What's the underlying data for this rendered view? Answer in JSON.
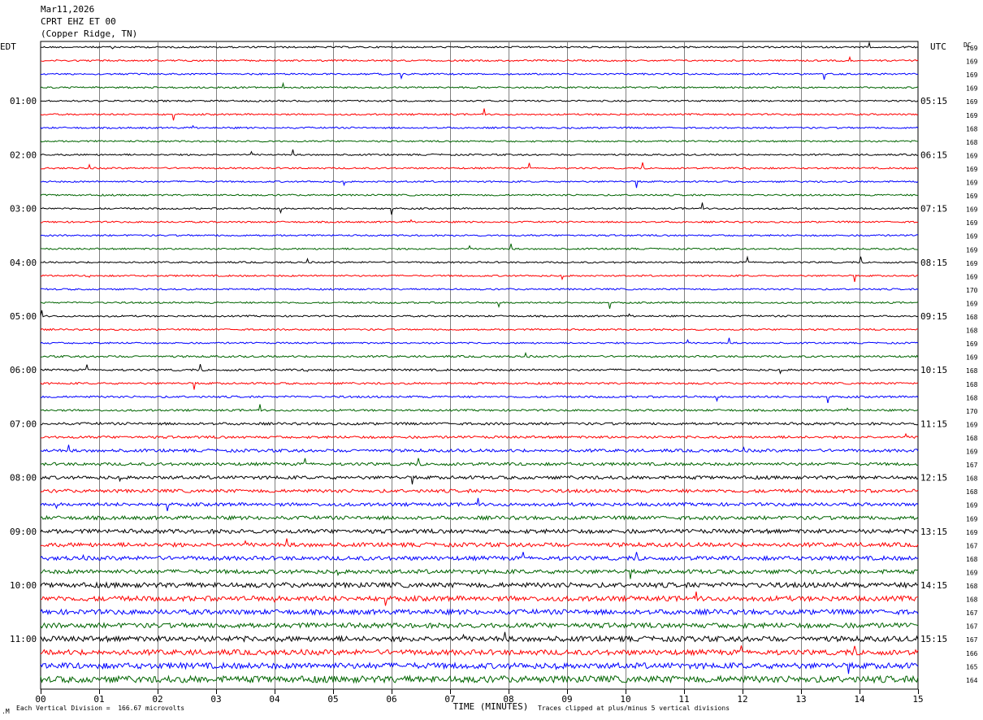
{
  "header": {
    "date": "Mar11,2026",
    "station": "CPRT EHZ ET 00",
    "location": "(Copper Ridge, TN)"
  },
  "left_timezone": "EDT",
  "right_timezone": "UTC",
  "dc_label": "DC",
  "xlabel": "TIME (MINUTES)",
  "footer": {
    "scale": "Each Vertical Division =  166.67 microvolts",
    "clip": "Traces clipped at plus/minus 5 vertical divisions",
    "corner": ".M"
  },
  "colors": {
    "trace_cycle": [
      "#000000",
      "#ff0000",
      "#0000ff",
      "#006400"
    ]
  },
  "chart_data": {
    "type": "line",
    "title": "CPRT EHZ ET 00 (Copper Ridge, TN) Mar11,2026",
    "x_ticks": [
      "00",
      "01",
      "02",
      "03",
      "04",
      "05",
      "06",
      "07",
      "08",
      "09",
      "10",
      "11",
      "12",
      "13",
      "14",
      "15"
    ],
    "xlim": [
      0,
      15
    ],
    "grid": "vertical lines each minute",
    "row_count": 48,
    "minutes_per_row": 15,
    "left_hour_labels": [
      "01:00",
      "02:00",
      "03:00",
      "04:00",
      "05:00",
      "06:00",
      "07:00",
      "08:00",
      "09:00",
      "10:00",
      "11:00"
    ],
    "right_hour_labels": [
      "05:15",
      "06:15",
      "07:15",
      "08:15",
      "09:15",
      "10:15",
      "11:15",
      "12:15",
      "13:15",
      "14:15",
      "15:15"
    ],
    "dc_values": [
      169,
      169,
      169,
      169,
      169,
      169,
      168,
      168,
      169,
      169,
      169,
      169,
      169,
      169,
      169,
      169,
      169,
      169,
      170,
      169,
      168,
      168,
      169,
      169,
      168,
      168,
      168,
      170,
      169,
      168,
      169,
      167,
      168,
      168,
      169,
      169,
      169,
      167,
      168,
      169,
      168,
      168,
      167,
      167,
      167,
      166,
      165,
      164
    ],
    "amplitude_per_row": [
      1,
      1,
      1,
      1,
      1,
      1,
      1,
      1,
      1,
      1,
      1,
      1,
      1,
      1,
      1,
      1,
      1,
      1,
      1,
      1,
      1,
      1,
      1,
      1.2,
      1.2,
      1.2,
      1.2,
      1.2,
      1.5,
      1.5,
      1.8,
      1.8,
      2,
      2,
      2,
      2.2,
      2.5,
      2.5,
      2.5,
      2.5,
      3,
      3,
      3,
      3,
      3.2,
      3.2,
      3.5,
      4
    ]
  }
}
